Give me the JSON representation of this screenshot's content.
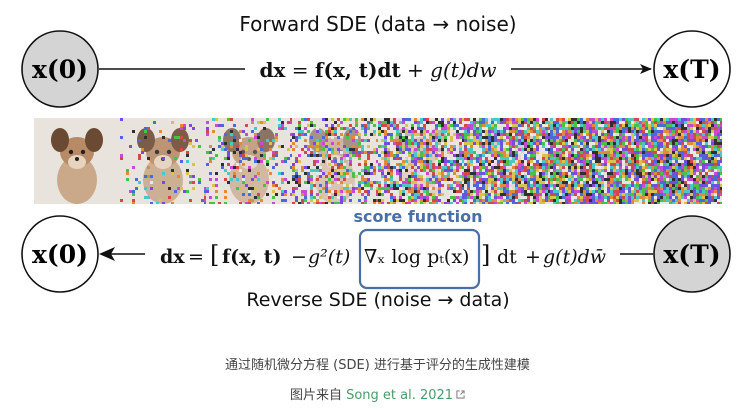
{
  "forward": {
    "title": "Forward SDE (data → noise)",
    "equation": {
      "lhs": "dx",
      "eq": "=",
      "drift": "f(x, t)dt",
      "plus": "+",
      "diffusion": "g(t)dw"
    }
  },
  "reverse": {
    "title": "Reverse SDE (noise → data)",
    "equation": {
      "lhs": "dx",
      "eq": "=",
      "open_bracket": "[",
      "drift": "f(x, t)",
      "minus": "−",
      "g2": "g²(t)",
      "score": "∇ₓ log pₜ(x)",
      "close_bracket": "]",
      "dt": "dt",
      "plus": "+",
      "diffusion": "g(t)dw̄"
    }
  },
  "score_label": "score function",
  "nodes": {
    "top_left": "x(0)",
    "top_right": "x(T)",
    "bottom_left": "x(0)",
    "bottom_right": "x(T)"
  },
  "strip": {
    "frame_count": 8,
    "noise_levels": [
      0.0,
      0.12,
      0.28,
      0.48,
      0.7,
      0.86,
      0.95,
      1.0
    ]
  },
  "caption": {
    "line1": "通过随机微分方程 (SDE) 进行基于评分的生成性建模",
    "line2_prefix": "图片来自 ",
    "line2_link": "Song et al. 2021"
  },
  "colors": {
    "node_fill_grey": "#d4d4d4",
    "node_fill_white": "#ffffff",
    "score_box": "#4a6fa5",
    "link": "#4a9a6a"
  }
}
